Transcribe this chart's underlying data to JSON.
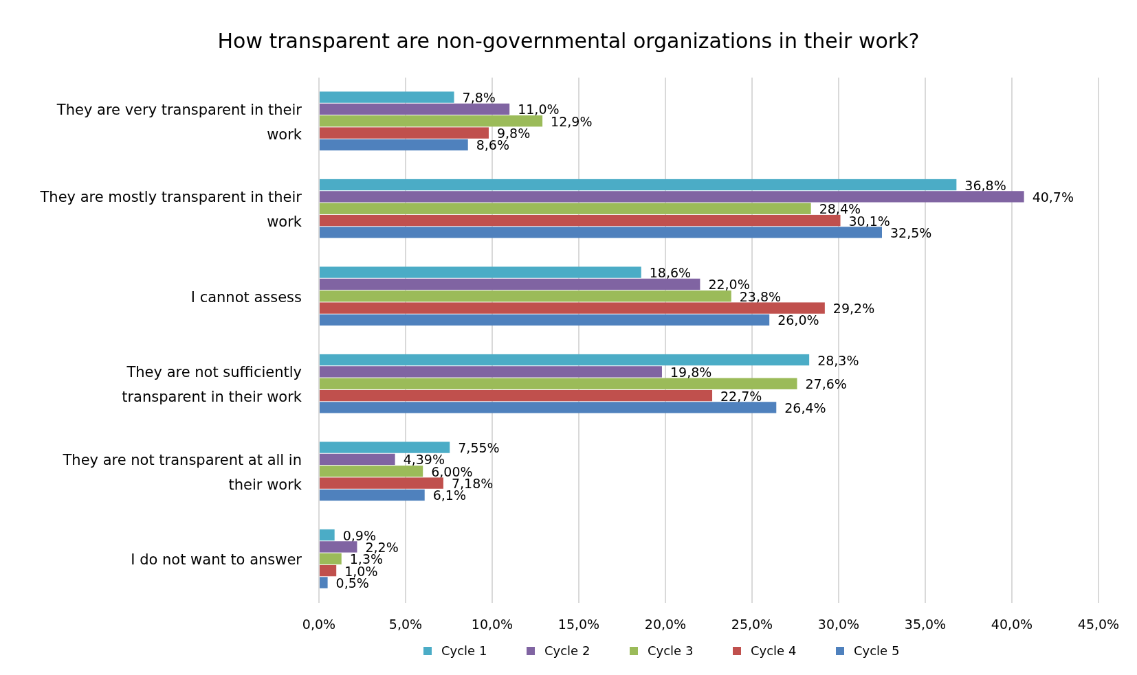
{
  "chart_data": {
    "type": "bar",
    "orientation": "horizontal",
    "title": "How transparent are non-governmental organizations in their work?",
    "categories": [
      "They are very transparent in their work",
      "They are mostly transparent in their work",
      "I cannot assess",
      "They are not sufficiently transparent in their work",
      "They are not transparent at all in their work",
      "I do not want to answer"
    ],
    "series": [
      {
        "name": "Cycle 1",
        "color": "#4bacc6",
        "values": [
          7.8,
          36.8,
          18.6,
          28.3,
          7.55,
          0.9
        ],
        "value_labels": [
          "7,8%",
          "36,8%",
          "18,6%",
          "28,3%",
          "7,55%",
          "0,9%"
        ]
      },
      {
        "name": "Cycle 2",
        "color": "#8064a2",
        "values": [
          11.0,
          40.7,
          22.0,
          19.8,
          4.39,
          2.2
        ],
        "value_labels": [
          "11,0%",
          "40,7%",
          "22,0%",
          "19,8%",
          "4,39%",
          "2,2%"
        ]
      },
      {
        "name": "Cycle 3",
        "color": "#9bbb59",
        "values": [
          12.9,
          28.4,
          23.8,
          27.6,
          6.0,
          1.3
        ],
        "value_labels": [
          "12,9%",
          "28,4%",
          "23,8%",
          "27,6%",
          "6,00%",
          "1,3%"
        ]
      },
      {
        "name": "Cycle 4",
        "color": "#c0504d",
        "values": [
          9.8,
          30.1,
          29.2,
          22.7,
          7.18,
          1.0
        ],
        "value_labels": [
          "9,8%",
          "30,1%",
          "29,2%",
          "22,7%",
          "7,18%",
          "1,0%"
        ]
      },
      {
        "name": "Cycle 5",
        "color": "#4f81bd",
        "values": [
          8.6,
          32.5,
          26.0,
          26.4,
          6.1,
          0.5
        ],
        "value_labels": [
          "8,6%",
          "32,5%",
          "26,0%",
          "26,4%",
          "6,1%",
          "0,5%"
        ]
      }
    ],
    "xlim": [
      0,
      45
    ],
    "xticks": [
      {
        "value": 0,
        "label": "0,0%"
      },
      {
        "value": 5,
        "label": "5,0%"
      },
      {
        "value": 10,
        "label": "10,0%"
      },
      {
        "value": 15,
        "label": "15,0%"
      },
      {
        "value": 20,
        "label": "20,0%"
      },
      {
        "value": 25,
        "label": "25,0%"
      },
      {
        "value": 30,
        "label": "30,0%"
      },
      {
        "value": 35,
        "label": "35,0%"
      },
      {
        "value": 40,
        "label": "40,0%"
      },
      {
        "value": 45,
        "label": "45,0%"
      }
    ],
    "grid": "x",
    "legend": "bottom"
  }
}
